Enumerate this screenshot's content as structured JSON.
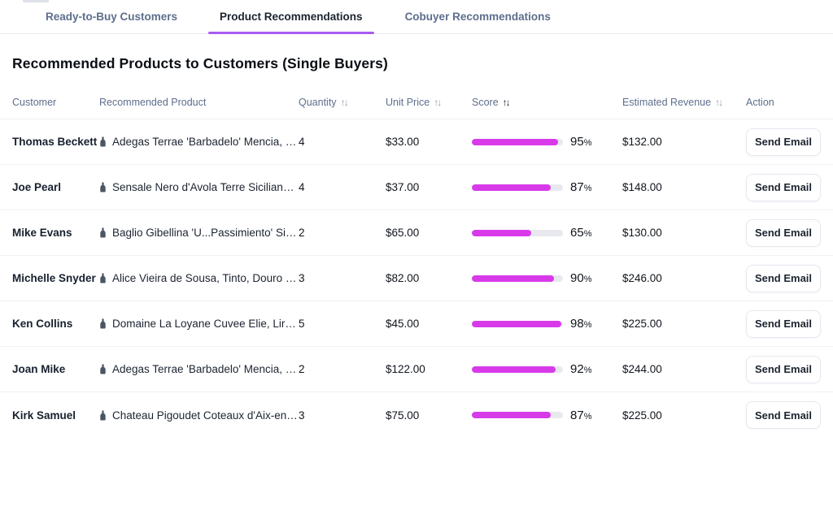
{
  "colors": {
    "accent_purple": "#a85cf0",
    "bar_fill": "#d83aea",
    "bar_track": "#e7e9ee",
    "tab_inactive": "#5d6e8c",
    "tab_active": "#1c2430"
  },
  "tabs": [
    {
      "label": "Ready-to-Buy Customers",
      "active": false
    },
    {
      "label": "Product Recommendations",
      "active": true
    },
    {
      "label": "Cobuyer Recommendations",
      "active": false
    }
  ],
  "title": "Recommended Products to Customers (Single Buyers)",
  "table": {
    "sort_glyph": "↑↓",
    "percent_suffix": "%",
    "action_label": "Send Email",
    "columns": [
      {
        "label": "Customer",
        "sortable": false
      },
      {
        "label": "Recommended Product",
        "sortable": false
      },
      {
        "label": "Quantity",
        "sortable": true,
        "sort_active": false
      },
      {
        "label": "Unit Price",
        "sortable": true,
        "sort_active": false
      },
      {
        "label": "Score",
        "sortable": true,
        "sort_active": true
      },
      {
        "label": "Estimated Revenue",
        "sortable": true,
        "sort_active": false
      },
      {
        "label": "Action",
        "sortable": false
      }
    ],
    "rows": [
      {
        "customer": "Thomas Beckett",
        "product": "Adegas Terrae 'Barbadelo' Mencia, …",
        "quantity": "4",
        "unit_price": "$33.00",
        "score": 95,
        "revenue": "$132.00"
      },
      {
        "customer": "Joe Pearl",
        "product": "Sensale Nero d'Avola Terre Sicilian…",
        "quantity": "4",
        "unit_price": "$37.00",
        "score": 87,
        "revenue": "$148.00"
      },
      {
        "customer": "Mike Evans",
        "product": "Baglio Gibellina 'U...Passimiento' Si…",
        "quantity": "2",
        "unit_price": "$65.00",
        "score": 65,
        "revenue": "$130.00"
      },
      {
        "customer": "Michelle Snyder",
        "product": "Alice Vieira de Sousa, Tinto, Douro …",
        "quantity": "3",
        "unit_price": "$82.00",
        "score": 90,
        "revenue": "$246.00"
      },
      {
        "customer": "Ken Collins",
        "product": "Domaine La Loyane Cuvee Elie, Lir…",
        "quantity": "5",
        "unit_price": "$45.00",
        "score": 98,
        "revenue": "$225.00"
      },
      {
        "customer": "Joan Mike",
        "product": "Adegas Terrae 'Barbadelo' Mencia, …",
        "quantity": "2",
        "unit_price": "$122.00",
        "score": 92,
        "revenue": "$244.00"
      },
      {
        "customer": "Kirk Samuel",
        "product": "Chateau Pigoudet Coteaux d'Aix-en…",
        "quantity": "3",
        "unit_price": "$75.00",
        "score": 87,
        "revenue": "$225.00"
      }
    ]
  }
}
